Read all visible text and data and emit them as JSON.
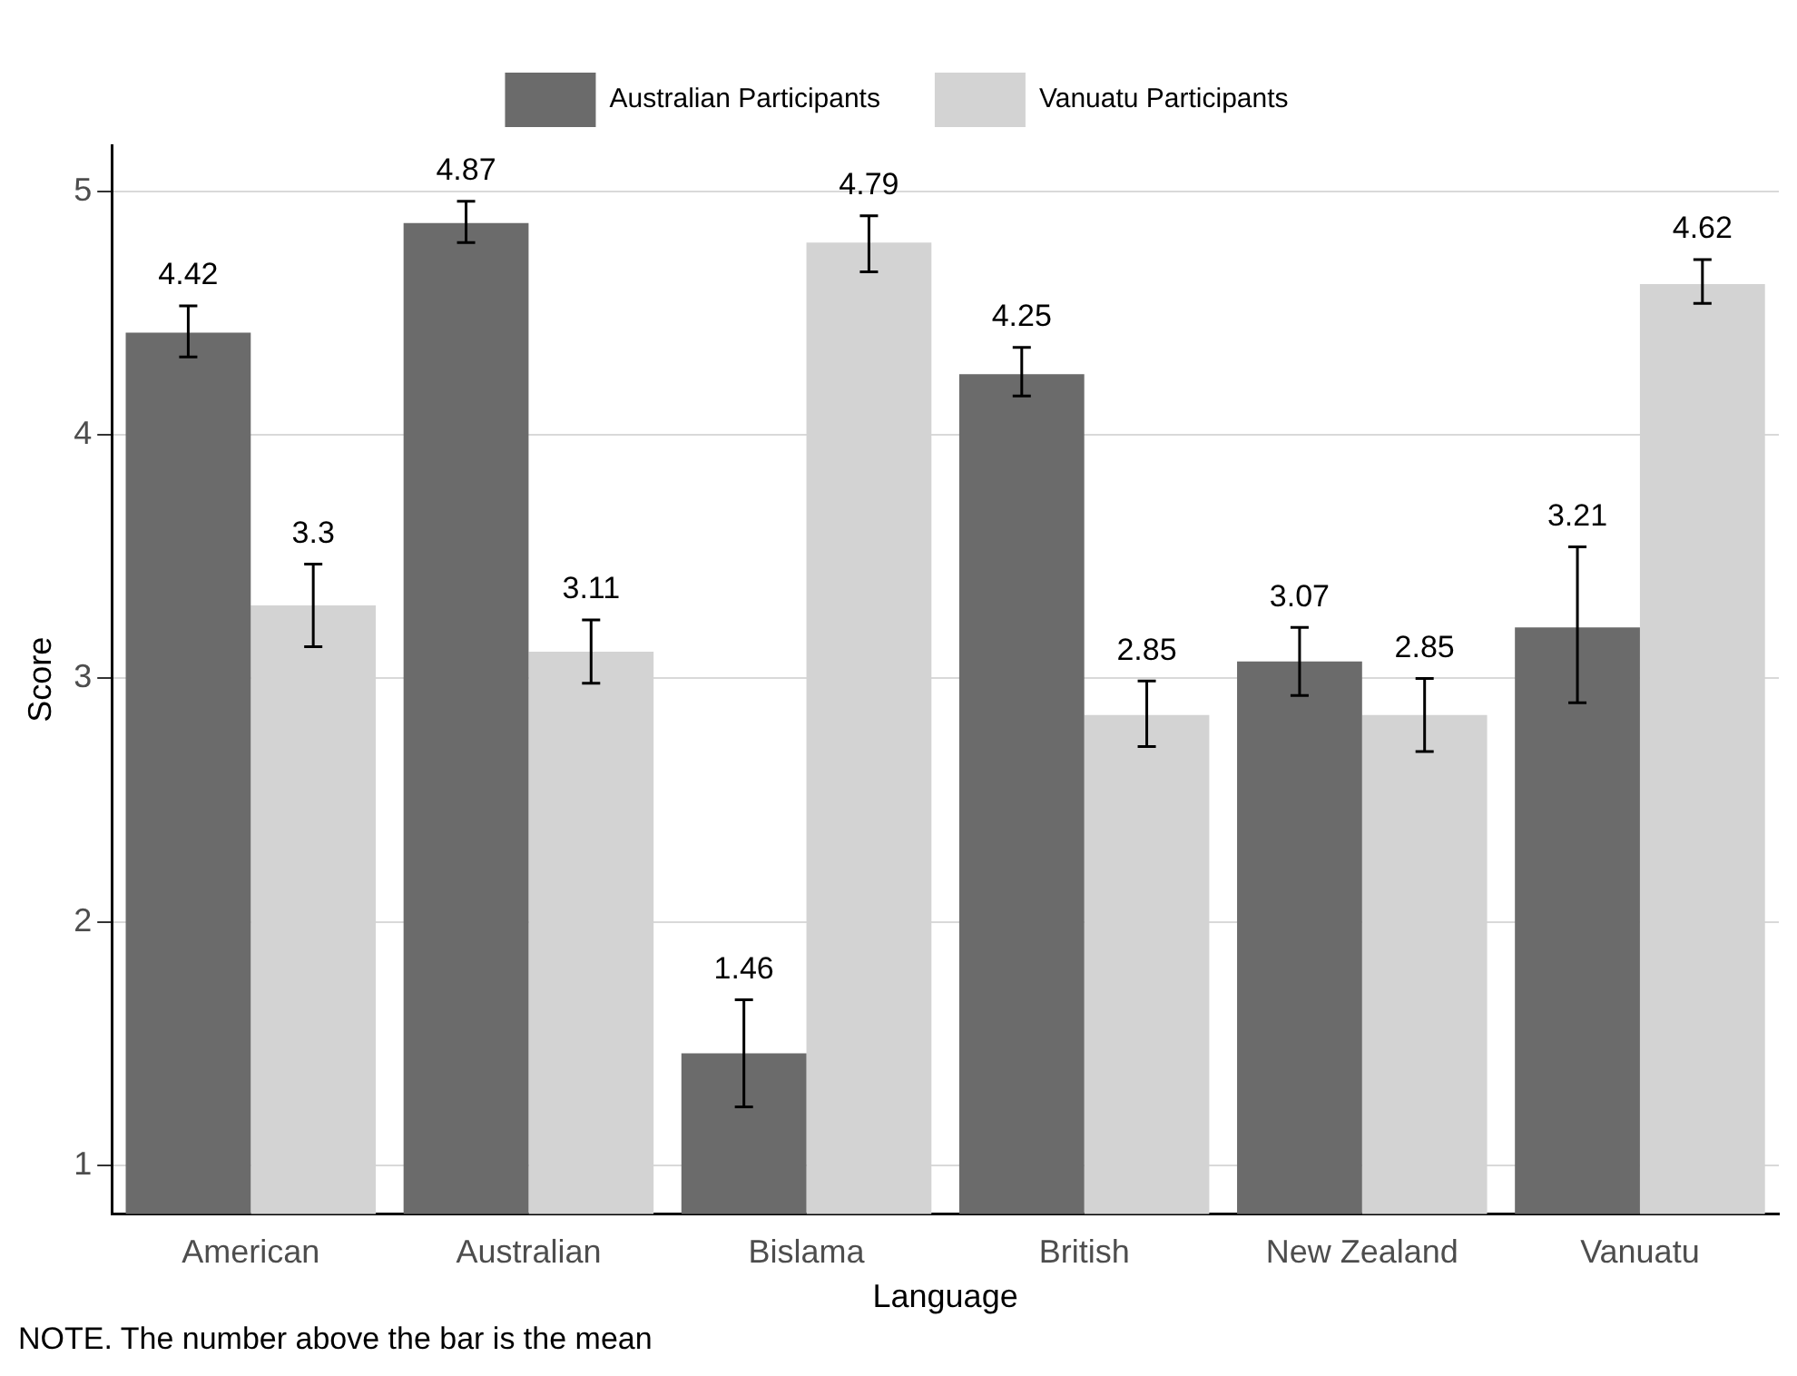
{
  "chart_data": {
    "type": "bar",
    "xlabel": "Language",
    "ylabel": "Score",
    "categories": [
      "American",
      "Australian",
      "Bislama",
      "British",
      "New Zealand",
      "Vanuatu"
    ],
    "series": [
      {
        "name": "Australian Participants",
        "color": "#6b6b6b",
        "values": [
          4.42,
          4.87,
          1.46,
          4.25,
          3.07,
          3.21
        ],
        "errors": [
          [
            4.32,
            4.53
          ],
          [
            4.79,
            4.96
          ],
          [
            1.24,
            1.68
          ],
          [
            4.16,
            4.36
          ],
          [
            2.93,
            3.21
          ],
          [
            2.9,
            3.54
          ]
        ]
      },
      {
        "name": "Vanuatu Participants",
        "color": "#d3d3d3",
        "values": [
          3.3,
          3.11,
          4.79,
          2.85,
          2.85,
          4.62
        ],
        "errors": [
          [
            3.13,
            3.47
          ],
          [
            2.98,
            3.24
          ],
          [
            4.67,
            4.9
          ],
          [
            2.72,
            2.99
          ],
          [
            2.7,
            3.0
          ],
          [
            4.54,
            4.72
          ]
        ]
      }
    ],
    "ylim": [
      0.8,
      5.19
    ],
    "yticks": [
      1,
      2,
      3,
      4,
      5
    ],
    "grid": "y",
    "legend": "top",
    "data_labels": true,
    "annotations": [
      "NOTE. The number above the bar is the mean"
    ]
  }
}
